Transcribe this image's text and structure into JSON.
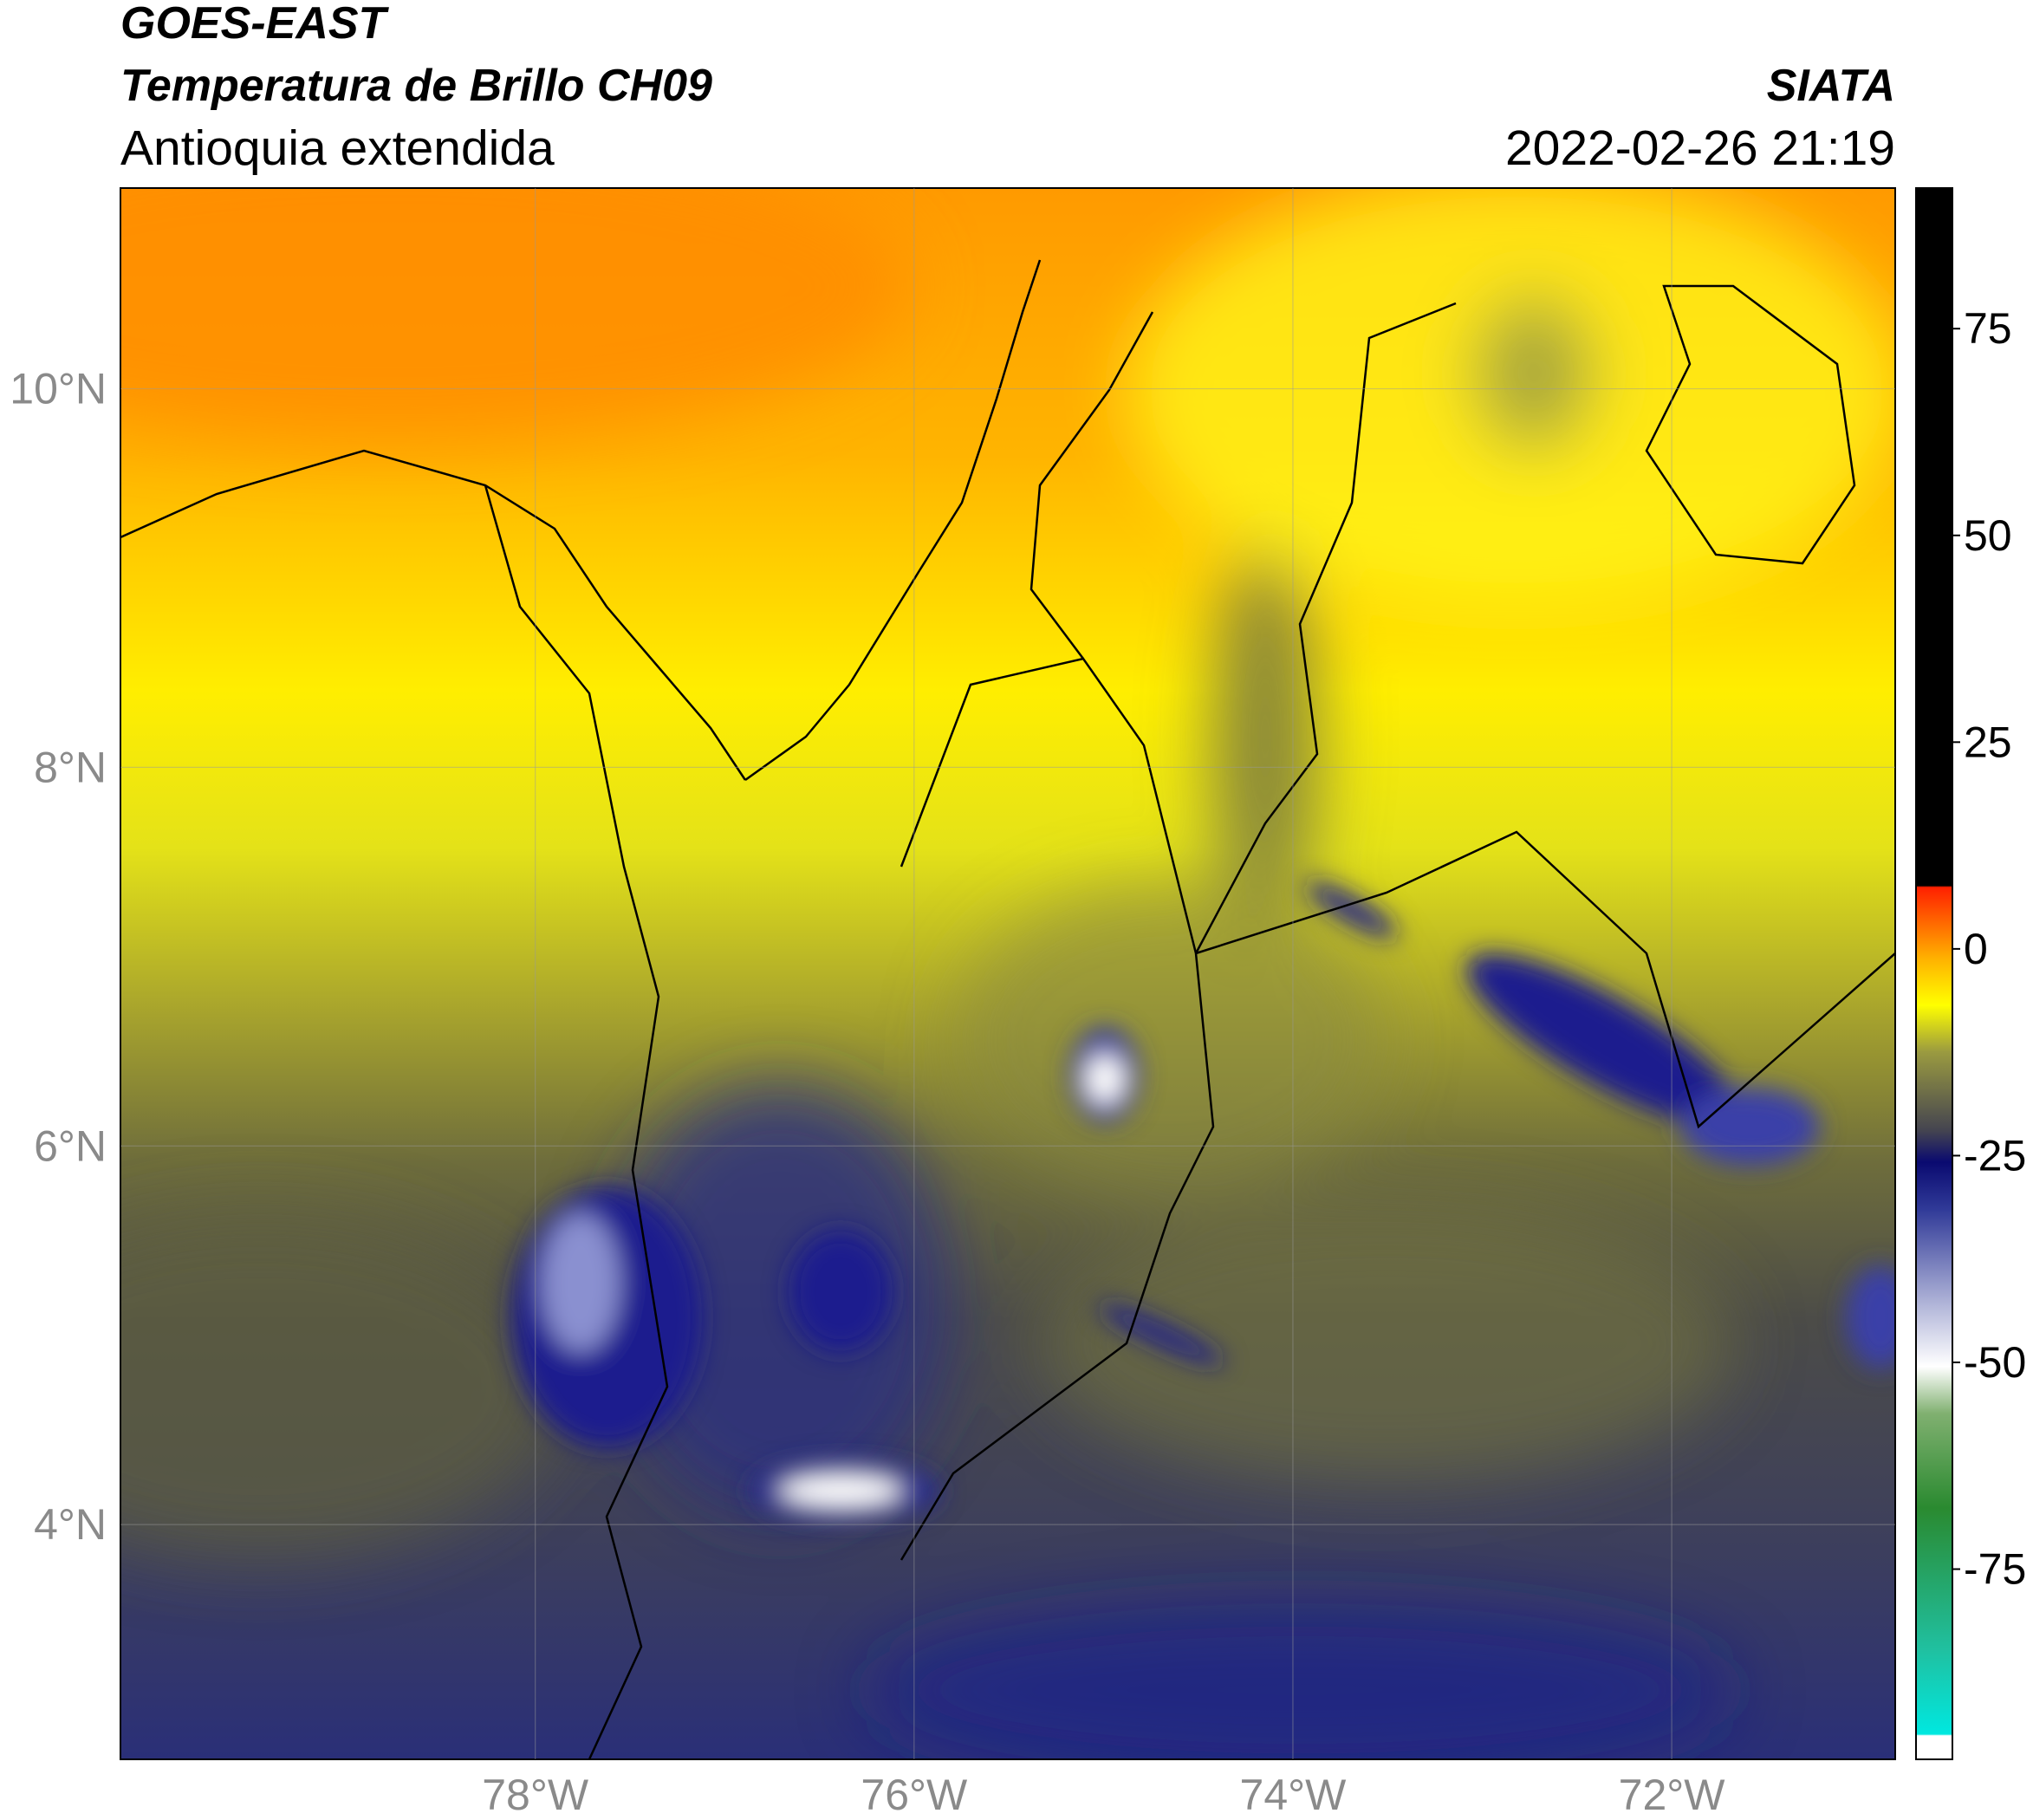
{
  "header": {
    "title": "GOES-EAST",
    "subtitle": "Temperatura de Brillo CH09",
    "region": "Antioquia extendida",
    "source": "SIATA",
    "datetime": "2022-02-26 21:19"
  },
  "map": {
    "xlim": [
      -80.19,
      -70.82
    ],
    "ylim": [
      2.76,
      11.06
    ],
    "xticks": [
      {
        "value": -78,
        "label": "78°W"
      },
      {
        "value": -76,
        "label": "76°W"
      },
      {
        "value": -74,
        "label": "74°W"
      },
      {
        "value": -72,
        "label": "72°W"
      }
    ],
    "yticks": [
      {
        "value": 4,
        "label": "4°N"
      },
      {
        "value": 6,
        "label": "6°N"
      },
      {
        "value": 8,
        "label": "8°N"
      },
      {
        "value": 10,
        "label": "10°N"
      }
    ],
    "grid": true
  },
  "colorbar": {
    "lim": [
      -98,
      92
    ],
    "ticks": [
      -75,
      -50,
      -25,
      0,
      25,
      50,
      75
    ]
  }
}
